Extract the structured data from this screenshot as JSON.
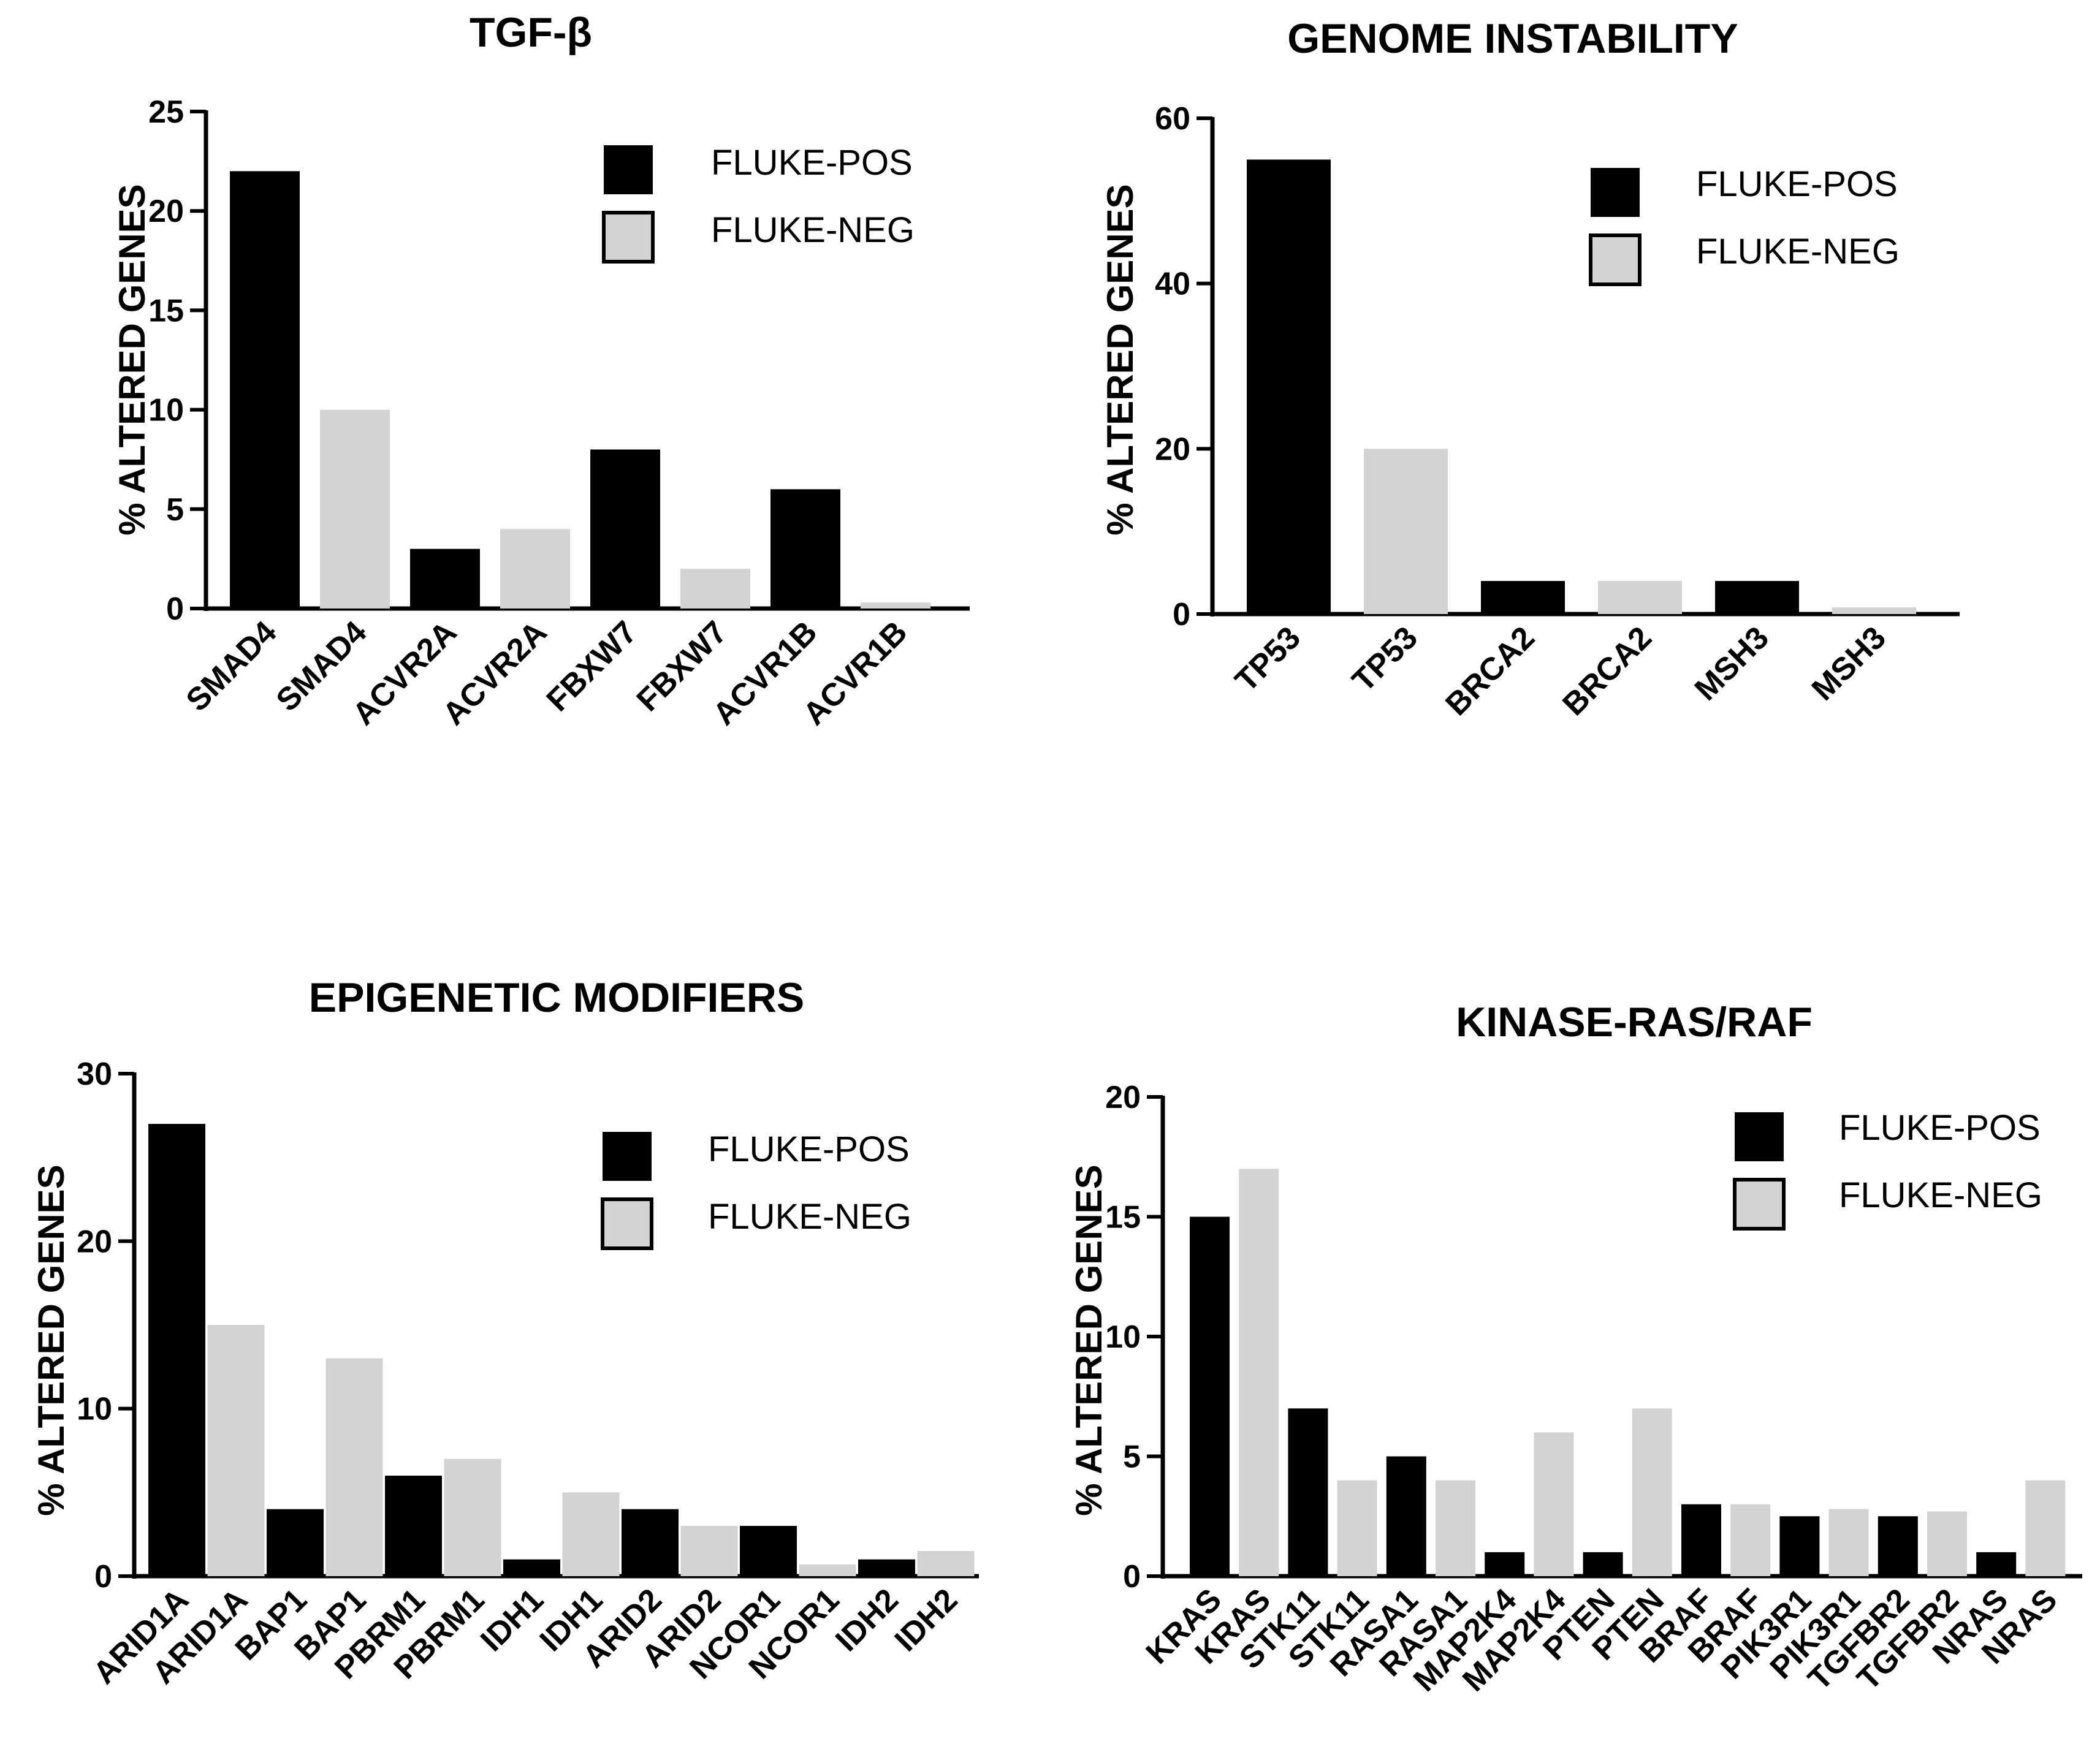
{
  "colors": {
    "pos": "#000000",
    "neg": "#d3d3d3",
    "axis": "#000000"
  },
  "chart_data": [
    {
      "type": "bar",
      "title": "TGF-β",
      "ylabel": "% ALTERED GENES",
      "xlabel": "",
      "ylim": [
        0,
        25
      ],
      "yticks": [
        "0",
        "5",
        "10",
        "15",
        "20",
        "25"
      ],
      "categories": [
        "SMAD4",
        "SMAD4",
        "ACVR2A",
        "ACVR2A",
        "FBXW7",
        "FBXW7",
        "ACVR1B",
        "ACVR1B"
      ],
      "groups": [
        "pos",
        "neg",
        "pos",
        "neg",
        "pos",
        "neg",
        "pos",
        "neg"
      ],
      "values": [
        22,
        10,
        3,
        4,
        8,
        2,
        6,
        0.3
      ],
      "legend": [
        "FLUKE-POS",
        "FLUKE-NEG"
      ],
      "legend_position": "top-right"
    },
    {
      "type": "bar",
      "title": "GENOME INSTABILITY",
      "ylabel": "% ALTERED GENES",
      "xlabel": "",
      "ylim": [
        0,
        60
      ],
      "yticks": [
        "0",
        "20",
        "40",
        "60"
      ],
      "categories": [
        "TP53",
        "TP53",
        "BRCA2",
        "BRCA2",
        "MSH3",
        "MSH3"
      ],
      "groups": [
        "pos",
        "neg",
        "pos",
        "neg",
        "pos",
        "neg"
      ],
      "values": [
        55,
        20,
        4,
        4,
        4,
        0.8
      ],
      "legend": [
        "FLUKE-POS",
        "FLUKE-NEG"
      ],
      "legend_position": "top-right"
    },
    {
      "type": "bar",
      "title": "EPIGENETIC MODIFIERS",
      "ylabel": "% ALTERED GENES",
      "xlabel": "",
      "ylim": [
        0,
        30
      ],
      "yticks": [
        "0",
        "10",
        "20",
        "30"
      ],
      "categories": [
        "ARID1A",
        "ARID1A",
        "BAP1",
        "BAP1",
        "PBRM1",
        "PBRM1",
        "IDH1",
        "IDH1",
        "ARID2",
        "ARID2",
        "NCOR1",
        "NCOR1",
        "IDH2",
        "IDH2"
      ],
      "groups": [
        "pos",
        "neg",
        "pos",
        "neg",
        "pos",
        "neg",
        "pos",
        "neg",
        "pos",
        "neg",
        "pos",
        "neg",
        "pos",
        "neg"
      ],
      "values": [
        27,
        15,
        4,
        13,
        6,
        7,
        1,
        5,
        4,
        3,
        3,
        0.7,
        1,
        1.5
      ],
      "legend": [
        "FLUKE-POS",
        "FLUKE-NEG"
      ],
      "legend_position": "top-right"
    },
    {
      "type": "bar",
      "title": "KINASE-RAS/RAF",
      "ylabel": "% ALTERED GENES",
      "xlabel": "",
      "ylim": [
        0,
        20
      ],
      "yticks": [
        "0",
        "5",
        "10",
        "15",
        "20"
      ],
      "categories": [
        "KRAS",
        "KRAS",
        "STK11",
        "STK11",
        "RASA1",
        "RASA1",
        "MAP2K4",
        "MAP2K4",
        "PTEN",
        "PTEN",
        "BRAF",
        "BRAF",
        "PIK3R1",
        "PIK3R1",
        "TGFBR2",
        "TGFBR2",
        "NRAS",
        "NRAS"
      ],
      "groups": [
        "pos",
        "neg",
        "pos",
        "neg",
        "pos",
        "neg",
        "pos",
        "neg",
        "pos",
        "neg",
        "pos",
        "neg",
        "pos",
        "neg",
        "pos",
        "neg",
        "pos",
        "neg"
      ],
      "values": [
        15,
        17,
        7,
        4,
        5,
        4,
        1,
        6,
        1,
        7,
        3,
        3,
        2.5,
        2.8,
        2.5,
        2.7,
        1,
        4
      ],
      "legend": [
        "FLUKE-POS",
        "FLUKE-NEG"
      ],
      "legend_position": "top-right"
    }
  ]
}
